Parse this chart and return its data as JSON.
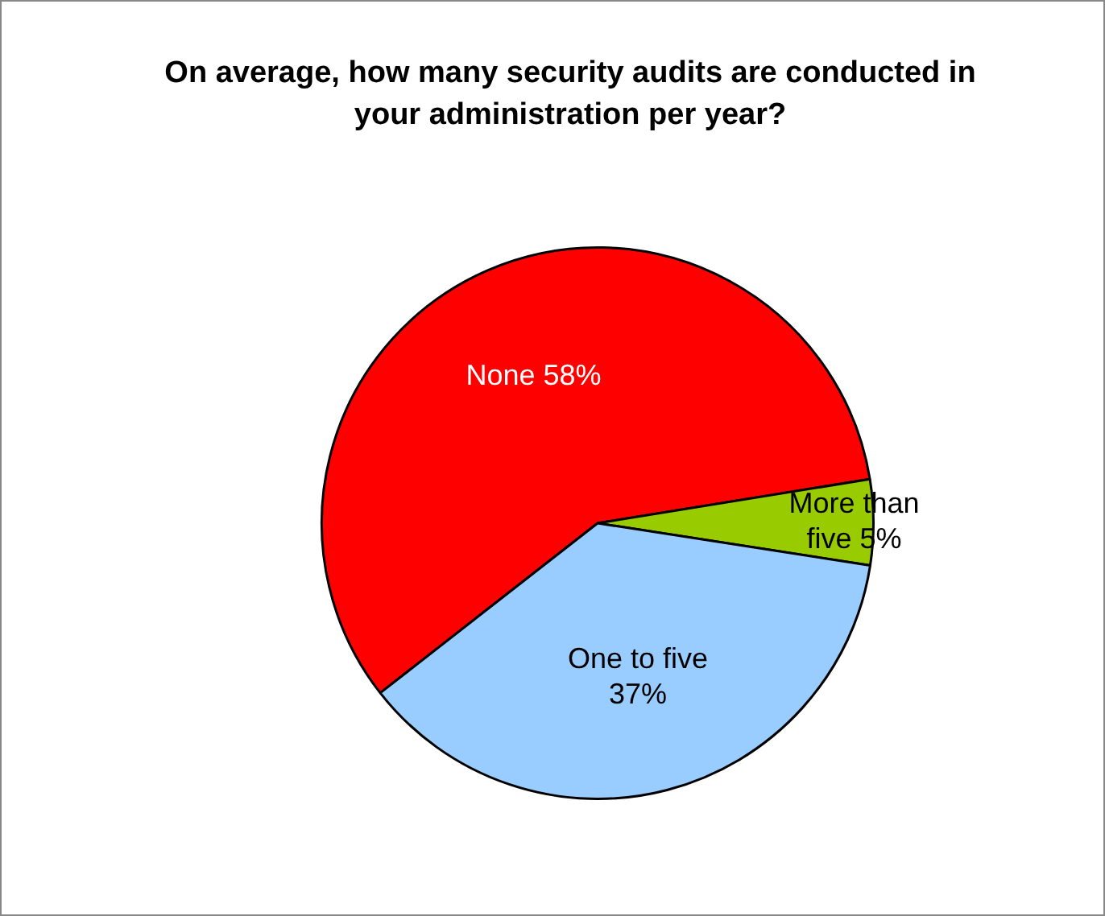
{
  "chart_data": {
    "type": "pie",
    "title": "On average, how many security audits are conducted in your administration per year?",
    "categories": [
      "None",
      "More than five",
      "One to five"
    ],
    "values": [
      58,
      5,
      37
    ],
    "colors": [
      "#ff0000",
      "#99cc00",
      "#99ccff"
    ],
    "value_labels": [
      "58%",
      "5%",
      "37%"
    ],
    "legend": false
  }
}
